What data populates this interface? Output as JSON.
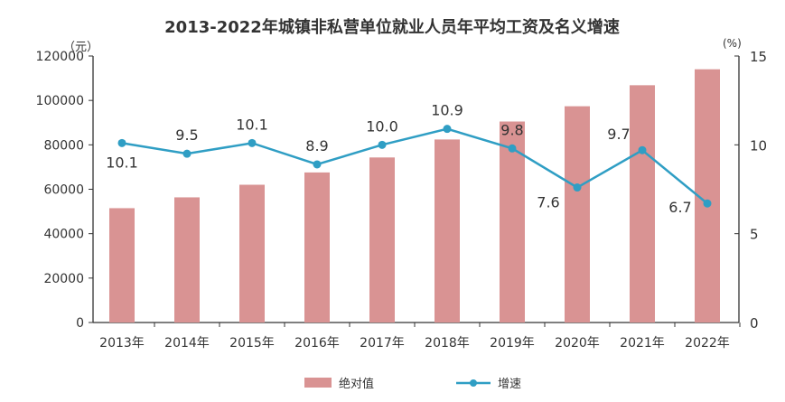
{
  "chart_data": {
    "type": "bar+line",
    "title": "2013-2022年城镇非私营单位就业人员年平均工资及名义增速",
    "left_unit": "（元）",
    "right_unit": "(%)",
    "categories": [
      "2013年",
      "2014年",
      "2015年",
      "2016年",
      "2017年",
      "2018年",
      "2019年",
      "2020年",
      "2021年",
      "2022年"
    ],
    "left_ylim": [
      0,
      120000
    ],
    "left_ticks": [
      "0",
      "20000",
      "40000",
      "60000",
      "80000",
      "100000",
      "120000"
    ],
    "right_ylim": [
      0,
      15
    ],
    "right_ticks": [
      "0",
      "5",
      "10",
      "15"
    ],
    "grid": false,
    "legend_position": "bottom",
    "series": [
      {
        "name": "绝对值",
        "type": "bar",
        "axis": "left",
        "color": "#d99393",
        "values": [
          51483,
          56360,
          62029,
          67569,
          74318,
          82413,
          90501,
          97379,
          106837,
          114029
        ]
      },
      {
        "name": "增速",
        "type": "line",
        "axis": "right",
        "color": "#2f9ec4",
        "values": [
          10.1,
          9.5,
          10.1,
          8.9,
          10.0,
          10.9,
          9.8,
          7.6,
          9.7,
          6.7
        ],
        "labels": [
          "10.1",
          "9.5",
          "10.1",
          "8.9",
          "10.0",
          "10.9",
          "9.8",
          "7.6",
          "9.7",
          "6.7"
        ]
      }
    ]
  }
}
